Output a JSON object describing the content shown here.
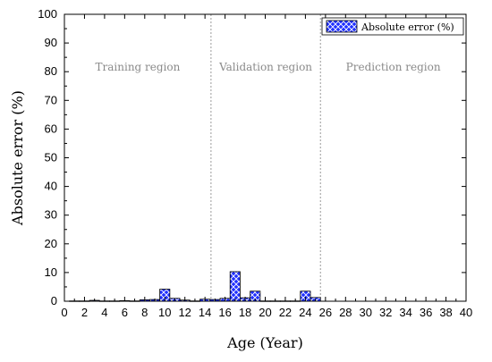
{
  "chart_data": {
    "type": "bar",
    "xlabel": "Age (Year)",
    "ylabel": "Absolute error (%)",
    "xlim": [
      0,
      40
    ],
    "ylim": [
      0,
      100
    ],
    "xticks": [
      0,
      2,
      4,
      6,
      8,
      10,
      12,
      14,
      16,
      18,
      20,
      22,
      24,
      26,
      28,
      30,
      32,
      34,
      36,
      38,
      40
    ],
    "yticks": [
      0,
      10,
      20,
      30,
      40,
      50,
      60,
      70,
      80,
      90,
      100
    ],
    "grid": false,
    "legend": "top-right",
    "bar_color": "#1f2fff",
    "series": [
      {
        "name": "Absolute error (%)",
        "x": [
          1,
          2,
          3,
          4,
          5,
          6,
          7,
          8,
          9,
          10,
          11,
          12,
          13,
          14,
          15,
          16,
          17,
          18,
          19,
          20,
          21,
          22,
          23,
          24,
          25
        ],
        "values": [
          0.1,
          0.1,
          0.3,
          0.1,
          0.1,
          0.2,
          0.1,
          0.5,
          0.6,
          4.2,
          1.0,
          0.4,
          0.1,
          0.7,
          0.6,
          1.0,
          10.3,
          1.2,
          3.5,
          0.1,
          0.1,
          0.1,
          0.1,
          3.5,
          1.3
        ]
      }
    ],
    "regions": [
      {
        "label": "Training region",
        "x_start": 0,
        "x_end": 14.6
      },
      {
        "label": "Validation region",
        "x_start": 14.6,
        "x_end": 25.5
      },
      {
        "label": "Prediction region",
        "x_start": 25.5,
        "x_end": 40
      }
    ],
    "region_dividers": [
      14.6,
      25.5
    ]
  }
}
